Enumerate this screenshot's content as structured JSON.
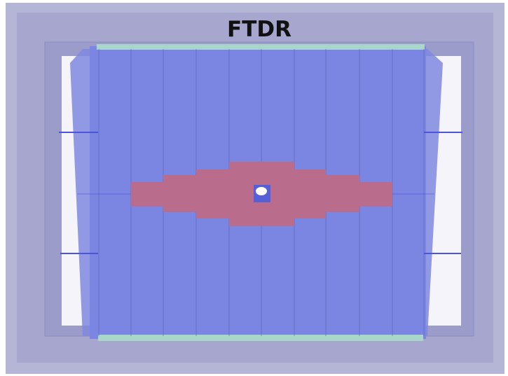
{
  "title": "FTDR"
}
